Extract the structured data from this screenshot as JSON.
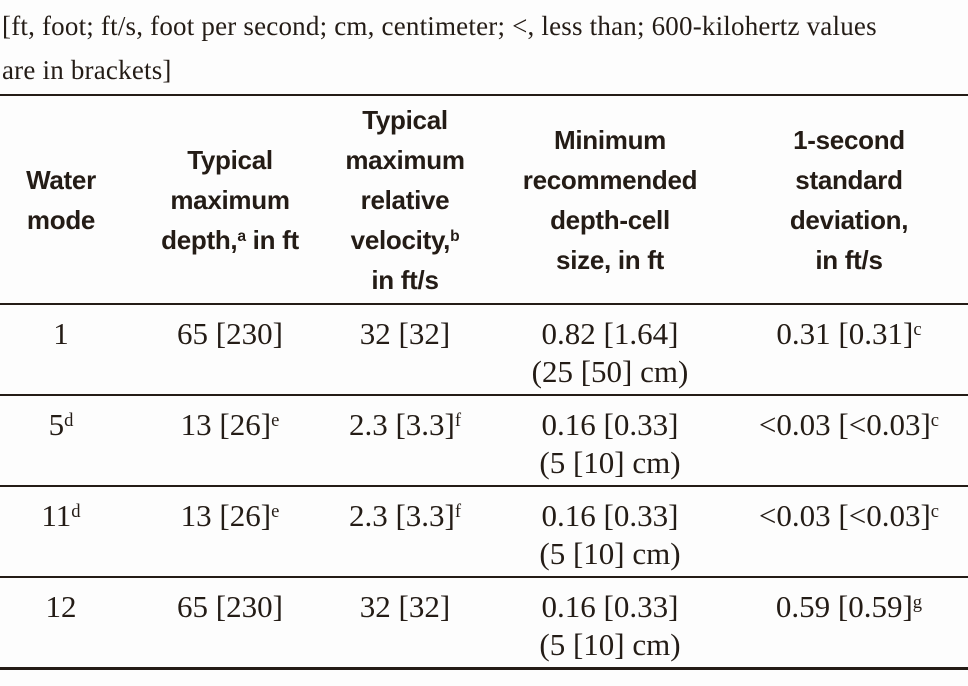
{
  "colors": {
    "text": "#241c16",
    "rule": "#241c16",
    "background": "#fdfdfd"
  },
  "note": {
    "line1": "[ft, foot; ft/s, foot per second; cm, centimeter; <, less than; 600-kilohertz values",
    "line2": "are in brackets]"
  },
  "table": {
    "headers": {
      "water_mode": {
        "line1": "Water",
        "line2": "mode"
      },
      "max_depth": {
        "line1": "Typical",
        "line2": "maximum",
        "line3_pre": "depth,",
        "line3_sup": "a",
        "line3_post": " in ft"
      },
      "max_velocity": {
        "line1": "Typical",
        "line2": "maximum",
        "line3": "relative",
        "line4_pre": "velocity,",
        "line4_sup": "b",
        "line5": "in ft/s"
      },
      "depth_cell": {
        "line1": "Minimum",
        "line2": "recommended",
        "line3": "depth-cell",
        "line4": "size, in ft"
      },
      "std_dev": {
        "line1": "1-second",
        "line2": "standard",
        "line3": "deviation,",
        "line4": "in ft/s"
      }
    },
    "rows": [
      {
        "mode": "1",
        "mode_sup": "",
        "depth": "65 [230]",
        "depth_sup": "",
        "velocity": "32 [32]",
        "velocity_sup": "",
        "cell_line1": "0.82 [1.64]",
        "cell_line2": "(25 [50] cm)",
        "stddev": "0.31 [0.31]",
        "stddev_sup": "c"
      },
      {
        "mode": "5",
        "mode_sup": "d",
        "depth": "13 [26]",
        "depth_sup": "e",
        "velocity": "2.3 [3.3]",
        "velocity_sup": "f",
        "cell_line1": "0.16 [0.33]",
        "cell_line2": "(5 [10] cm)",
        "stddev": "<0.03 [<0.03]",
        "stddev_sup": "c"
      },
      {
        "mode": "11",
        "mode_sup": "d",
        "depth": "13 [26]",
        "depth_sup": "e",
        "velocity": "2.3 [3.3]",
        "velocity_sup": "f",
        "cell_line1": "0.16 [0.33]",
        "cell_line2": "(5 [10] cm)",
        "stddev": "<0.03 [<0.03]",
        "stddev_sup": "c"
      },
      {
        "mode": "12",
        "mode_sup": "",
        "depth": "65 [230]",
        "depth_sup": "",
        "velocity": "32 [32]",
        "velocity_sup": "",
        "cell_line1": "0.16 [0.33]",
        "cell_line2": "(5 [10] cm)",
        "stddev": "0.59 [0.59]",
        "stddev_sup": "g"
      }
    ]
  }
}
